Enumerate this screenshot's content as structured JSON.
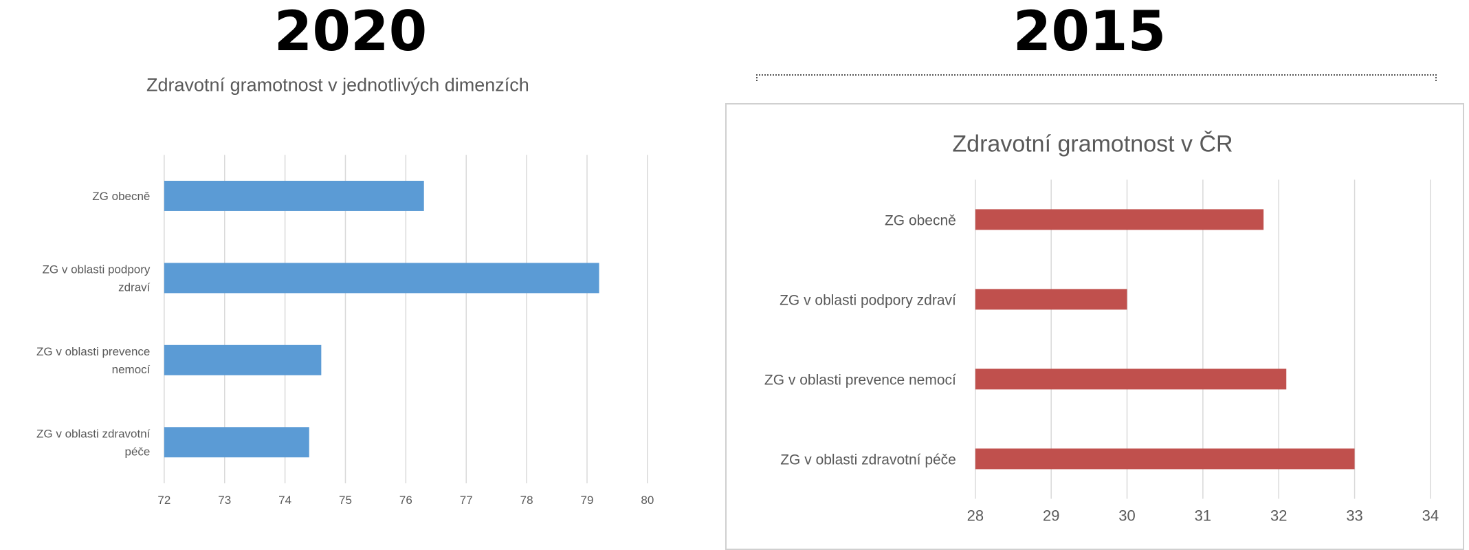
{
  "headings": {
    "left_year": "2020",
    "right_year": "2015"
  },
  "chart_data": [
    {
      "type": "bar",
      "orientation": "horizontal",
      "title": "Zdravotní gramotnost v jednotlivých dimenzích",
      "categories": [
        "ZG obecně",
        "ZG v oblasti podpory zdraví",
        "ZG v oblasti prevence nemocí",
        "ZG v oblasti zdravotní péče"
      ],
      "category_lines": [
        [
          "ZG obecně"
        ],
        [
          "ZG v oblasti podpory",
          "zdraví"
        ],
        [
          "ZG v oblasti prevence",
          "nemocí"
        ],
        [
          "ZG v oblasti zdravotní",
          "péče"
        ]
      ],
      "values": [
        76.3,
        79.2,
        74.6,
        74.4
      ],
      "xlim": [
        72,
        80
      ],
      "xticks": [
        72,
        73,
        74,
        75,
        76,
        77,
        78,
        79,
        80
      ],
      "bar_color": "#5b9bd5",
      "grid": true,
      "legend": "none"
    },
    {
      "type": "bar",
      "orientation": "horizontal",
      "title": "Zdravotní gramotnost v ČR",
      "categories": [
        "ZG obecně",
        "ZG v oblasti podpory zdraví",
        "ZG v oblasti prevence nemocí",
        "ZG v oblasti zdravotní péče"
      ],
      "category_lines": [
        [
          "ZG obecně"
        ],
        [
          "ZG v oblasti podpory zdraví"
        ],
        [
          "ZG v oblasti prevence nemocí"
        ],
        [
          "ZG v oblasti zdravotní péče"
        ]
      ],
      "values": [
        31.8,
        30.0,
        32.1,
        33.0
      ],
      "xlim": [
        28,
        34
      ],
      "xticks": [
        28,
        29,
        30,
        31,
        32,
        33,
        34
      ],
      "bar_color": "#c0504d",
      "grid": true,
      "legend": "none"
    }
  ]
}
